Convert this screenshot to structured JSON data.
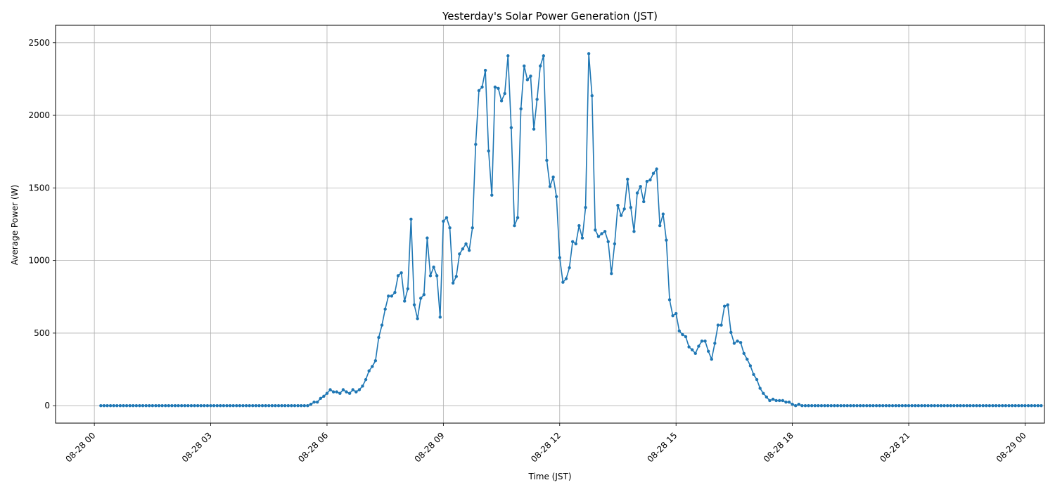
{
  "chart_data": {
    "type": "line",
    "title": "Yesterday's Solar Power Generation (JST)",
    "xlabel": "Time (JST)",
    "ylabel": "Average Power (W)",
    "xlim": [
      "08-27 23:00",
      "08-29 00:30"
    ],
    "ylim": [
      -120,
      2620
    ],
    "grid": true,
    "xticks": [
      "08-28 00",
      "08-28 03",
      "08-28 06",
      "08-28 09",
      "08-28 12",
      "08-28 15",
      "08-28 18",
      "08-28 21",
      "08-29 00"
    ],
    "yticks": [
      0,
      500,
      1000,
      1500,
      2000,
      2500
    ],
    "series": [
      {
        "color": "#1f77b4",
        "marker": "circle",
        "x_start": "08-28 00:10",
        "x_step_minutes": 5,
        "values": [
          0,
          0,
          0,
          0,
          0,
          0,
          0,
          0,
          0,
          0,
          0,
          0,
          0,
          0,
          0,
          0,
          0,
          0,
          0,
          0,
          0,
          0,
          0,
          0,
          0,
          0,
          0,
          0,
          0,
          0,
          0,
          0,
          0,
          0,
          0,
          0,
          0,
          0,
          0,
          0,
          0,
          0,
          0,
          0,
          0,
          0,
          0,
          0,
          0,
          0,
          0,
          0,
          0,
          0,
          0,
          0,
          0,
          0,
          0,
          0,
          0,
          0,
          0,
          0,
          0,
          10,
          25,
          25,
          50,
          65,
          85,
          110,
          95,
          95,
          85,
          110,
          95,
          85,
          110,
          95,
          110,
          135,
          180,
          240,
          270,
          310,
          470,
          555,
          665,
          755,
          755,
          780,
          895,
          915,
          720,
          805,
          1285,
          695,
          600,
          740,
          765,
          1155,
          895,
          955,
          895,
          610,
          1270,
          1295,
          1225,
          845,
          890,
          1045,
          1080,
          1115,
          1070,
          1225,
          1800,
          2170,
          2195,
          2310,
          1755,
          1450,
          2195,
          2185,
          2100,
          2150,
          2410,
          1915,
          1240,
          1295,
          2045,
          2340,
          2245,
          2270,
          1905,
          2110,
          2340,
          2410,
          1690,
          1510,
          1575,
          1440,
          1020,
          850,
          875,
          950,
          1130,
          1115,
          1240,
          1155,
          1365,
          2425,
          2135,
          1210,
          1165,
          1185,
          1200,
          1130,
          910,
          1115,
          1380,
          1310,
          1355,
          1560,
          1365,
          1200,
          1465,
          1510,
          1405,
          1545,
          1555,
          1600,
          1630,
          1240,
          1320,
          1140,
          730,
          620,
          635,
          515,
          490,
          475,
          405,
          385,
          360,
          410,
          445,
          445,
          375,
          320,
          430,
          555,
          555,
          685,
          695,
          505,
          430,
          445,
          435,
          360,
          320,
          275,
          215,
          180,
          120,
          85,
          60,
          35,
          45,
          35,
          35,
          35,
          25,
          25,
          10,
          0,
          10,
          0,
          0,
          0,
          0,
          0,
          0,
          0,
          0,
          0,
          0,
          0,
          0,
          0,
          0,
          0,
          0,
          0,
          0,
          0,
          0,
          0,
          0,
          0,
          0,
          0,
          0,
          0,
          0,
          0,
          0,
          0,
          0,
          0,
          0,
          0,
          0,
          0,
          0,
          0,
          0,
          0,
          0,
          0,
          0,
          0,
          0,
          0,
          0,
          0,
          0,
          0,
          0,
          0,
          0,
          0,
          0,
          0,
          0,
          0,
          0,
          0,
          0,
          0,
          0,
          0,
          0,
          0,
          0,
          0,
          0,
          0,
          0,
          0,
          0,
          0
        ]
      }
    ]
  }
}
